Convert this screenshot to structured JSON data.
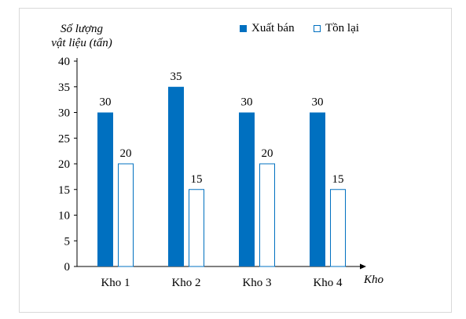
{
  "chart_data": {
    "type": "bar",
    "categories": [
      "Kho 1",
      "Kho 2",
      "Kho 3",
      "Kho 4"
    ],
    "series": [
      {
        "name": "Xuất bán",
        "values": [
          30,
          35,
          30,
          30
        ],
        "color": "#0070c0"
      },
      {
        "name": "Tồn lại",
        "values": [
          20,
          15,
          20,
          15
        ],
        "color": "#ffffff",
        "stroke": "#0070c0"
      }
    ],
    "ylabel_lines": [
      "Số lượng",
      "vật liệu (tấn)"
    ],
    "xlabel": "Kho",
    "yticks": [
      0,
      5,
      10,
      15,
      20,
      25,
      30,
      35,
      40
    ],
    "ylim": [
      0,
      40
    ],
    "legend_position": "top-right",
    "grid": false
  }
}
